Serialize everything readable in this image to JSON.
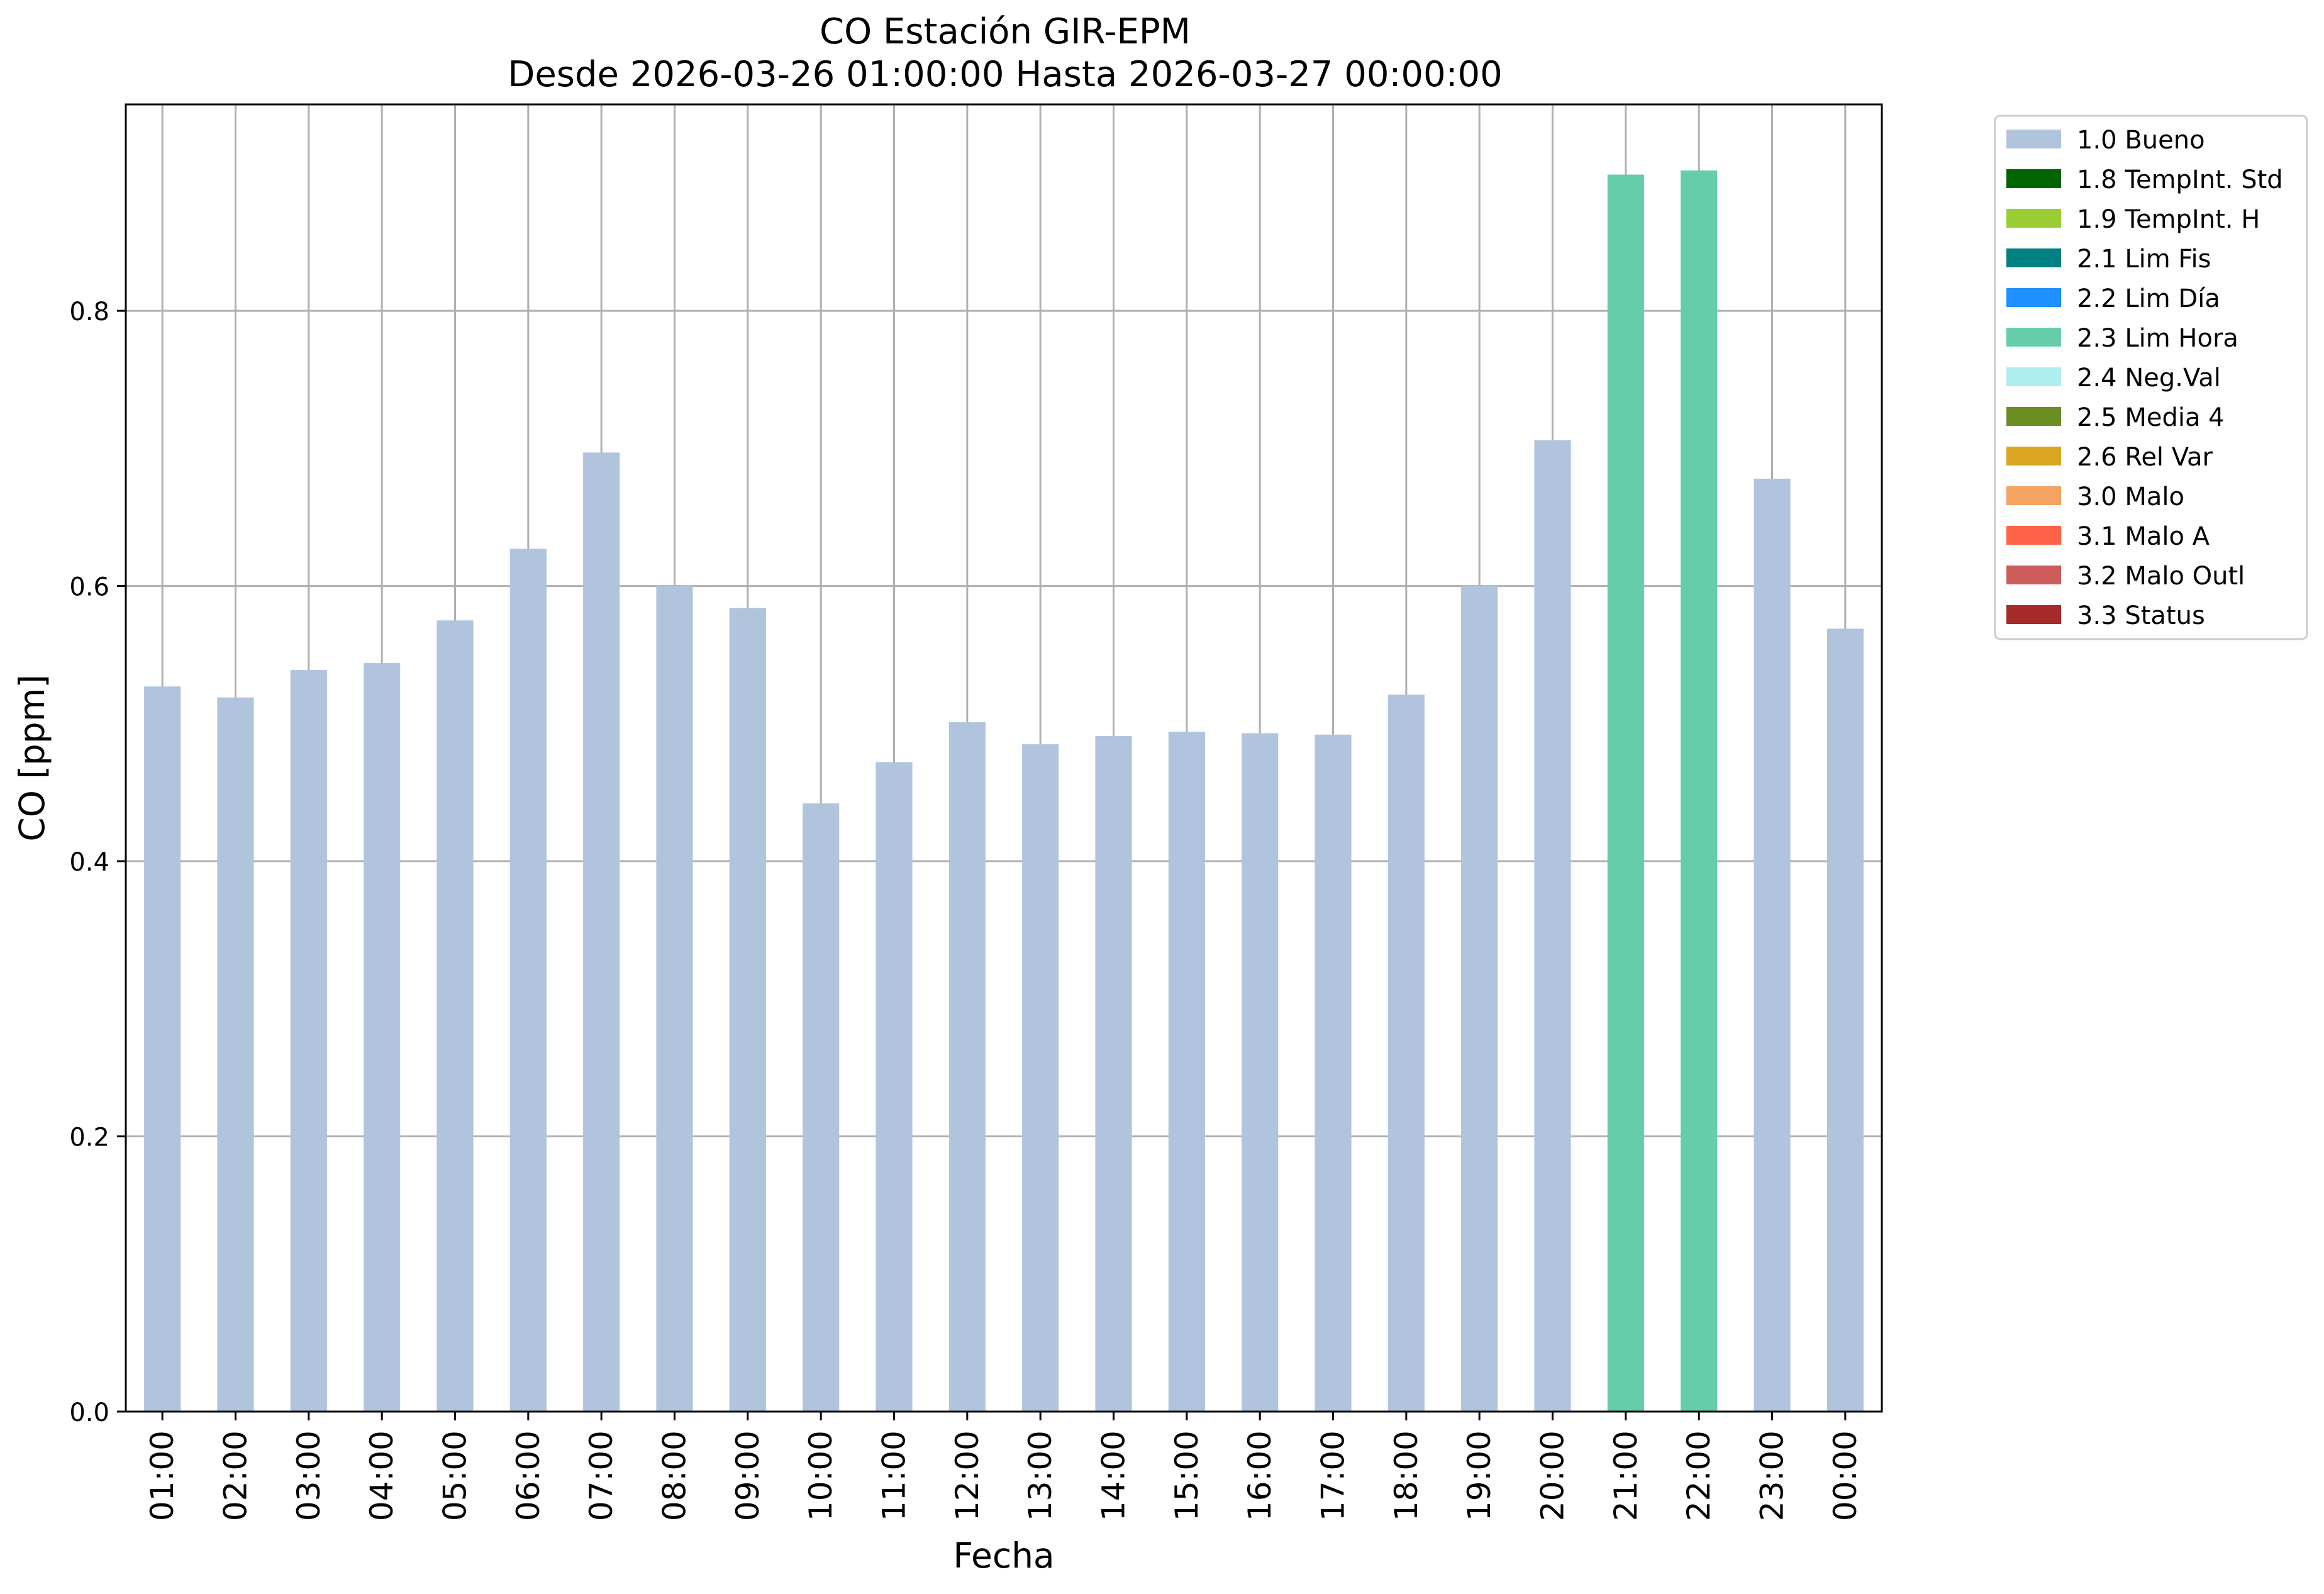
{
  "chart_data": {
    "type": "bar",
    "title": "CO Estación GIR-EPM",
    "subtitle": "Desde 2026-03-26 01:00:00 Hasta 2026-03-27 00:00:00",
    "xlabel": "Fecha",
    "ylabel": "CO [ppm]",
    "ylim": [
      0,
      0.95
    ],
    "yticks": [
      "0.0",
      "0.2",
      "0.4",
      "0.6",
      "0.8"
    ],
    "grid": true,
    "legend_position": "outside-top-right",
    "categories": [
      "01:00",
      "02:00",
      "03:00",
      "04:00",
      "05:00",
      "06:00",
      "07:00",
      "08:00",
      "09:00",
      "10:00",
      "11:00",
      "12:00",
      "13:00",
      "14:00",
      "15:00",
      "16:00",
      "17:00",
      "18:00",
      "19:00",
      "20:00",
      "21:00",
      "22:00",
      "23:00",
      "00:00"
    ],
    "values": [
      0.527,
      0.519,
      0.539,
      0.544,
      0.575,
      0.627,
      0.697,
      0.6,
      0.584,
      0.442,
      0.472,
      0.501,
      0.485,
      0.491,
      0.494,
      0.493,
      0.492,
      0.521,
      0.6,
      0.706,
      0.899,
      0.902,
      0.678,
      0.569
    ],
    "flags": [
      "1.0 Bueno",
      "1.0 Bueno",
      "1.0 Bueno",
      "1.0 Bueno",
      "1.0 Bueno",
      "1.0 Bueno",
      "1.0 Bueno",
      "1.0 Bueno",
      "1.0 Bueno",
      "1.0 Bueno",
      "1.0 Bueno",
      "1.0 Bueno",
      "1.0 Bueno",
      "1.0 Bueno",
      "1.0 Bueno",
      "1.0 Bueno",
      "1.0 Bueno",
      "1.0 Bueno",
      "1.0 Bueno",
      "1.0 Bueno",
      "2.3 Lim Hora",
      "2.3 Lim Hora",
      "1.0 Bueno",
      "1.0 Bueno"
    ],
    "legend": [
      {
        "label": "1.0 Bueno",
        "color": "#b0c4de"
      },
      {
        "label": "1.8 TempInt. Std",
        "color": "#006400"
      },
      {
        "label": "1.9 TempInt. H",
        "color": "#9acd32"
      },
      {
        "label": "2.1 Lim Fis",
        "color": "#008080"
      },
      {
        "label": "2.2 Lim Día",
        "color": "#1e90ff"
      },
      {
        "label": "2.3 Lim Hora",
        "color": "#66cdaa"
      },
      {
        "label": "2.4 Neg.Val",
        "color": "#afeeee"
      },
      {
        "label": "2.5 Media 4",
        "color": "#6b8e23"
      },
      {
        "label": "2.6 Rel Var",
        "color": "#daa520"
      },
      {
        "label": "3.0 Malo",
        "color": "#f4a460"
      },
      {
        "label": "3.1 Malo A",
        "color": "#ff6347"
      },
      {
        "label": "3.2 Malo Outl",
        "color": "#cd5c5c"
      },
      {
        "label": "3.3 Status",
        "color": "#a52a2a"
      }
    ]
  }
}
